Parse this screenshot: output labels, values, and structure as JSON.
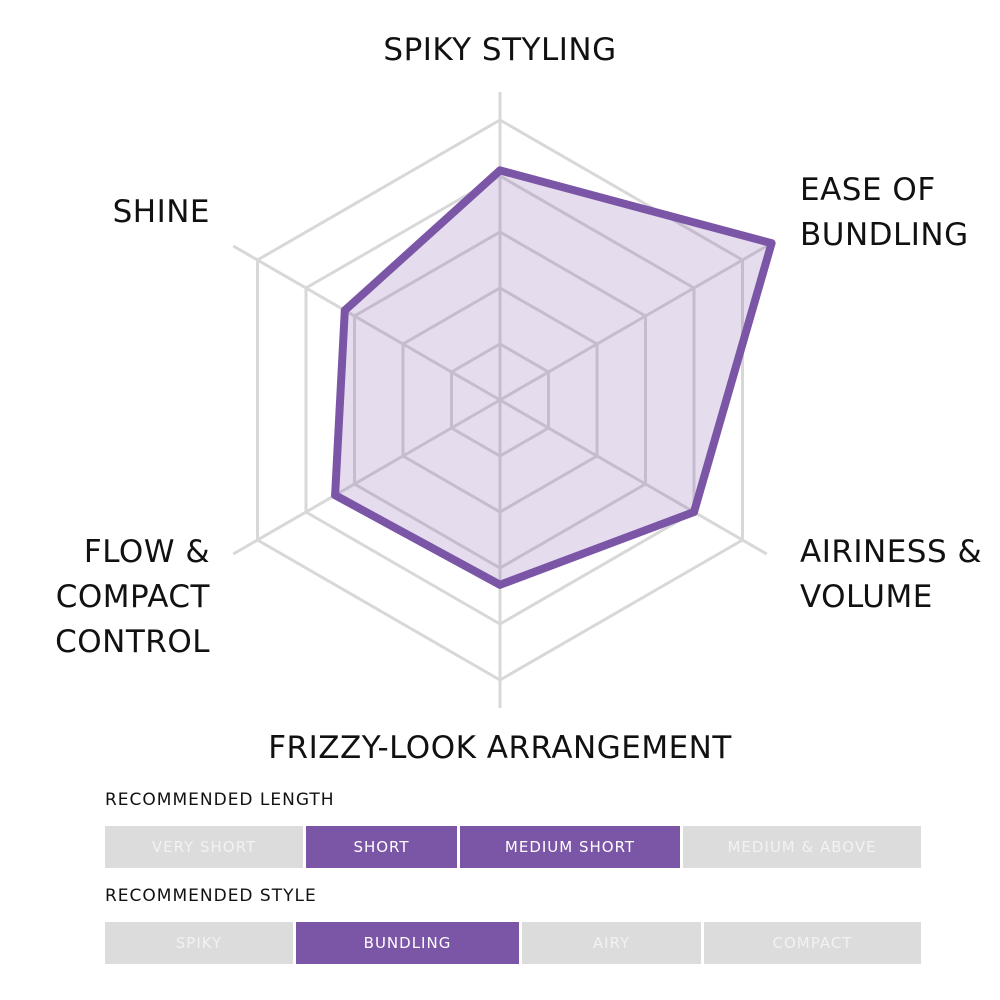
{
  "colors": {
    "accent": "#7b55a6",
    "fill": "rgba(123,85,166,0.2)",
    "grid": "#d8d8d8",
    "inactive": "#dcdcdc",
    "inactive_text": "#f2f2f2",
    "text": "#111111"
  },
  "chart_data": {
    "type": "radar",
    "axes": [
      {
        "label_lines": [
          "SPIKY STYLING"
        ]
      },
      {
        "label_lines": [
          "EASE OF",
          "BUNDLING"
        ]
      },
      {
        "label_lines": [
          "AIRINESS &",
          "VOLUME"
        ]
      },
      {
        "label_lines": [
          "FRIZZY-LOOK ARRANGEMENT"
        ]
      },
      {
        "label_lines": [
          "FLOW &",
          "COMPACT",
          "CONTROL"
        ]
      },
      {
        "label_lines": [
          "SHINE"
        ]
      }
    ],
    "levels": 5,
    "max": 5,
    "values": [
      4.1,
      5.6,
      4.0,
      3.3,
      3.4,
      3.2
    ],
    "grid": true
  },
  "recommended_length": {
    "title": "RECOMMENDED LENGTH",
    "options": [
      {
        "label": "VERY SHORT",
        "active": false
      },
      {
        "label": "SHORT",
        "active": true
      },
      {
        "label": "MEDIUM SHORT",
        "active": true
      },
      {
        "label": "MEDIUM & ABOVE",
        "active": false
      }
    ]
  },
  "recommended_style": {
    "title": "RECOMMENDED STYLE",
    "options": [
      {
        "label": "SPIKY",
        "active": false
      },
      {
        "label": "BUNDLING",
        "active": true
      },
      {
        "label": "AIRY",
        "active": false
      },
      {
        "label": "COMPACT",
        "active": false
      }
    ]
  }
}
